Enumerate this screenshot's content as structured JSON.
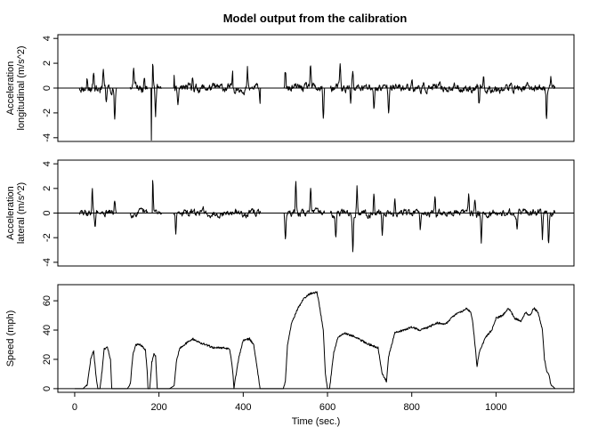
{
  "chart_data": [
    {
      "type": "line",
      "title": "Model output from the calibration",
      "ylabel_lines": [
        "Acceleration",
        "longitudinal (m/s^2)"
      ],
      "xlim": [
        -40,
        1185
      ],
      "ylim": [
        -4.3,
        4.3
      ],
      "yticks": [
        -4,
        -2,
        0,
        2,
        4
      ],
      "grid": false,
      "hline": 0,
      "noise": 0.22,
      "seed": 11,
      "active_ranges": [
        [
          12,
          55
        ],
        [
          60,
          98
        ],
        [
          132,
          172
        ],
        [
          185,
          205
        ],
        [
          236,
          375
        ],
        [
          378,
          440
        ],
        [
          498,
          592
        ],
        [
          608,
          1140
        ]
      ],
      "spikes": [
        [
          30,
          0.9
        ],
        [
          45,
          1.3
        ],
        [
          58,
          -1.6
        ],
        [
          68,
          1.4
        ],
        [
          75,
          -1.0
        ],
        [
          95,
          -2.5
        ],
        [
          140,
          1.6
        ],
        [
          165,
          1.2
        ],
        [
          178,
          -1.5
        ],
        [
          185,
          2.5
        ],
        [
          192,
          -2.0
        ],
        [
          235,
          1.3
        ],
        [
          245,
          -1.2
        ],
        [
          280,
          0.8
        ],
        [
          375,
          1.6
        ],
        [
          410,
          1.4
        ],
        [
          440,
          -1.0
        ],
        [
          500,
          1.4
        ],
        [
          560,
          1.6
        ],
        [
          590,
          -3.1
        ],
        [
          630,
          1.5
        ],
        [
          655,
          -1.2
        ],
        [
          660,
          1.3
        ],
        [
          710,
          -1.5
        ],
        [
          745,
          -1.8
        ],
        [
          800,
          0.8
        ],
        [
          960,
          -1.5
        ],
        [
          970,
          1.1
        ],
        [
          1120,
          -2.7
        ],
        [
          1130,
          1.0
        ]
      ],
      "x": [
        182
      ],
      "y": [
        -4.2
      ]
    },
    {
      "type": "line",
      "ylabel_lines": [
        "Acceleration",
        "lateral (m/s^2)"
      ],
      "xlim": [
        -40,
        1185
      ],
      "ylim": [
        -4.3,
        4.3
      ],
      "yticks": [
        -4,
        -2,
        0,
        2,
        4
      ],
      "grid": false,
      "hline": 0,
      "noise": 0.18,
      "seed": 29,
      "active_ranges": [
        [
          12,
          55
        ],
        [
          60,
          98
        ],
        [
          132,
          172
        ],
        [
          185,
          205
        ],
        [
          236,
          375
        ],
        [
          378,
          440
        ],
        [
          498,
          592
        ],
        [
          608,
          1140
        ]
      ],
      "spikes": [
        [
          42,
          2.0
        ],
        [
          48,
          -1.3
        ],
        [
          95,
          1.1
        ],
        [
          175,
          1.2
        ],
        [
          185,
          3.0
        ],
        [
          240,
          -1.8
        ],
        [
          305,
          0.7
        ],
        [
          500,
          -2.3
        ],
        [
          525,
          2.4
        ],
        [
          560,
          2.5
        ],
        [
          595,
          1.6
        ],
        [
          620,
          -2.1
        ],
        [
          660,
          -3.0
        ],
        [
          670,
          2.3
        ],
        [
          710,
          1.5
        ],
        [
          730,
          -1.6
        ],
        [
          760,
          1.2
        ],
        [
          820,
          -1.4
        ],
        [
          855,
          1.7
        ],
        [
          935,
          1.8
        ],
        [
          950,
          1.3
        ],
        [
          965,
          -2.5
        ],
        [
          1050,
          -1.5
        ],
        [
          1110,
          -1.9
        ],
        [
          1125,
          -2.6
        ]
      ],
      "x": [],
      "y": []
    },
    {
      "type": "line",
      "ylabel": "Speed (mph)",
      "xlabel": "Time (sec.)",
      "xlim": [
        -40,
        1185
      ],
      "ylim": [
        -2.5,
        71
      ],
      "xticks": [
        0,
        200,
        400,
        600,
        800,
        1000
      ],
      "yticks": [
        0,
        20,
        40,
        60
      ],
      "grid": false,
      "hline": 0,
      "noise": 0.7,
      "seed": 47,
      "x": [
        0,
        10,
        20,
        30,
        38,
        45,
        50,
        55,
        60,
        65,
        70,
        78,
        85,
        88,
        92,
        95,
        98,
        100,
        125,
        132,
        138,
        145,
        155,
        163,
        168,
        172,
        174,
        178,
        183,
        188,
        192,
        196,
        200,
        205,
        225,
        236,
        242,
        250,
        265,
        280,
        300,
        330,
        350,
        368,
        375,
        378,
        382,
        390,
        400,
        415,
        425,
        435,
        440,
        445,
        495,
        500,
        505,
        515,
        530,
        545,
        560,
        575,
        580,
        590,
        595,
        600,
        605,
        615,
        625,
        640,
        660,
        680,
        700,
        720,
        730,
        740,
        745,
        760,
        780,
        800,
        820,
        840,
        860,
        880,
        900,
        915,
        930,
        940,
        945,
        950,
        955,
        960,
        975,
        990,
        1000,
        1015,
        1030,
        1045,
        1060,
        1070,
        1080,
        1090,
        1100,
        1110,
        1115,
        1120,
        1125,
        1130,
        1140
      ],
      "y": [
        0,
        0,
        0,
        3,
        20,
        26,
        10,
        0,
        0,
        12,
        27,
        28,
        20,
        0,
        0,
        0,
        0,
        0,
        0,
        3,
        23,
        30,
        30,
        28,
        26,
        12,
        0,
        0,
        18,
        24,
        22,
        0,
        0,
        0,
        0,
        2,
        20,
        28,
        31,
        34,
        31,
        28,
        28,
        27,
        12,
        0,
        8,
        22,
        33,
        34,
        30,
        10,
        0,
        0,
        0,
        5,
        30,
        45,
        55,
        62,
        65,
        66,
        58,
        40,
        10,
        0,
        0,
        25,
        35,
        38,
        36,
        33,
        30,
        28,
        10,
        5,
        22,
        38,
        40,
        42,
        40,
        42,
        45,
        44,
        50,
        52,
        55,
        52,
        45,
        30,
        15,
        25,
        35,
        40,
        48,
        50,
        55,
        48,
        46,
        52,
        50,
        55,
        52,
        40,
        20,
        12,
        10,
        3,
        0
      ]
    }
  ]
}
